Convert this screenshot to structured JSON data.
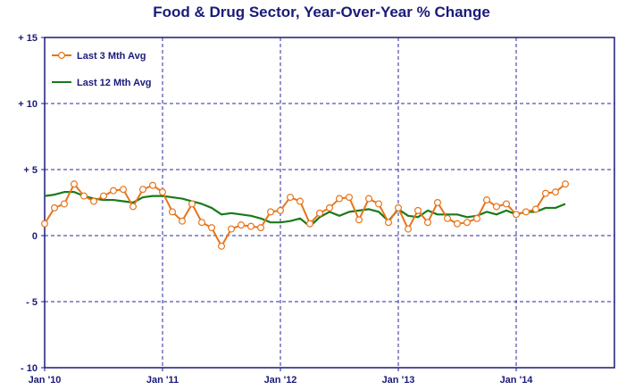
{
  "chart_data": {
    "type": "line",
    "title": "Food & Drug Sector, Year-Over-Year % Change",
    "xlabel": "",
    "ylabel": "",
    "ylim": [
      -10,
      15
    ],
    "y_ticks": [
      {
        "value": 15,
        "label": "+ 15"
      },
      {
        "value": 10,
        "label": "+ 10"
      },
      {
        "value": 5,
        "label": "+ 5"
      },
      {
        "value": 0,
        "label": "0"
      },
      {
        "value": -5,
        "label": "- 5"
      },
      {
        "value": -10,
        "label": "- 10"
      }
    ],
    "x_ticks": [
      {
        "month": 0,
        "label": "Jan '10"
      },
      {
        "month": 12,
        "label": "Jan '11"
      },
      {
        "month": 24,
        "label": "Jan '12"
      },
      {
        "month": 36,
        "label": "Jan '13"
      },
      {
        "month": 48,
        "label": "Jan '14"
      }
    ],
    "xlim": [
      0,
      58
    ],
    "grid": true,
    "legend_position": "top-left",
    "series": [
      {
        "name": "Last 3 Mth Avg",
        "color": "#e8741a",
        "marker": "circle",
        "values": [
          0.9,
          2.1,
          2.4,
          3.9,
          3.0,
          2.6,
          3.0,
          3.4,
          3.5,
          2.2,
          3.5,
          3.8,
          3.3,
          1.8,
          1.1,
          2.4,
          1.0,
          0.6,
          -0.8,
          0.5,
          0.8,
          0.7,
          0.6,
          1.8,
          1.9,
          2.9,
          2.6,
          0.9,
          1.7,
          2.1,
          2.8,
          2.9,
          1.2,
          2.8,
          2.4,
          1.0,
          2.1,
          0.5,
          1.9,
          1.0,
          2.5,
          1.3,
          0.9,
          1.0,
          1.3,
          2.7,
          2.2,
          2.4,
          1.6,
          1.8,
          2.0,
          3.2,
          3.3,
          3.9
        ]
      },
      {
        "name": "Last 12 Mth Avg",
        "color": "#1a7a1a",
        "marker": "none",
        "values": [
          3.0,
          3.1,
          3.3,
          3.3,
          3.0,
          2.8,
          2.7,
          2.7,
          2.6,
          2.5,
          2.9,
          3.0,
          3.0,
          2.9,
          2.8,
          2.6,
          2.4,
          2.1,
          1.6,
          1.7,
          1.6,
          1.5,
          1.3,
          1.0,
          1.0,
          1.1,
          1.3,
          0.7,
          1.4,
          1.8,
          1.5,
          1.8,
          1.9,
          2.0,
          1.8,
          1.1,
          2.0,
          1.5,
          1.4,
          1.9,
          1.6,
          1.6,
          1.6,
          1.4,
          1.5,
          1.8,
          1.6,
          1.9,
          1.6,
          1.8,
          1.8,
          2.1,
          2.1,
          2.4
        ]
      }
    ]
  }
}
